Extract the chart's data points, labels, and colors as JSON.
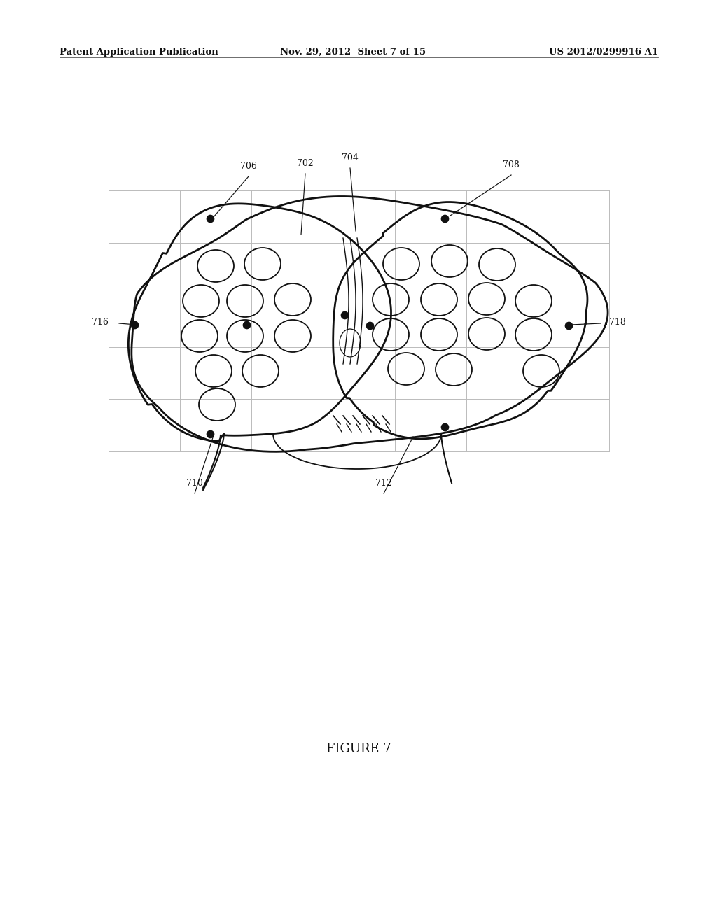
{
  "background_color": "#ffffff",
  "header_left": "Patent Application Publication",
  "header_center": "Nov. 29, 2012  Sheet 7 of 15",
  "header_right": "US 2012/0299916 A1",
  "caption": "FIGURE 7",
  "header_fontsize": 9.5,
  "caption_fontsize": 13,
  "grid_color": "#bbbbbb",
  "line_color": "#111111",
  "dot_color": "#111111"
}
